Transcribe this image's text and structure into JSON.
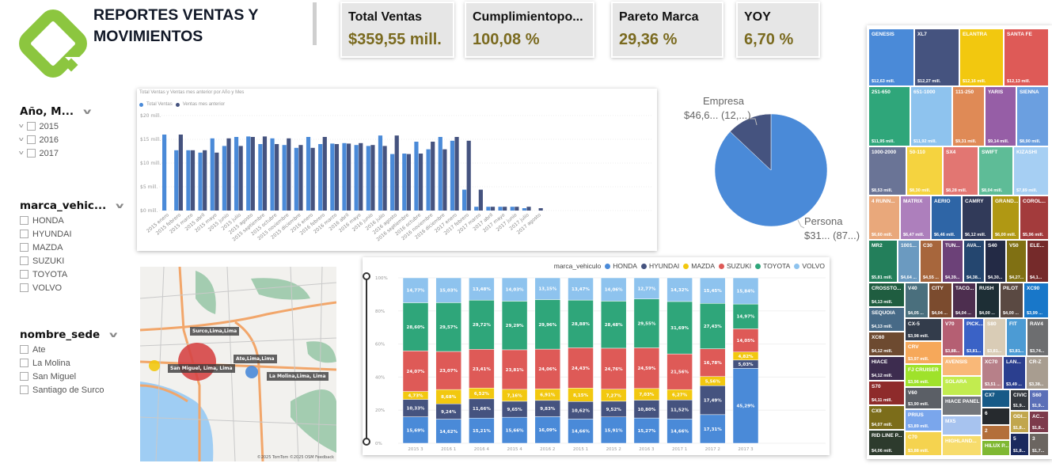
{
  "header": {
    "title": "REPORTES VENTAS Y MOVIMIENTOS"
  },
  "kpis": [
    {
      "label": "Total Ventas",
      "value": "$359,55 mill."
    },
    {
      "label": "Cumplimientopo...",
      "value": "100,08 %"
    },
    {
      "label": "Pareto Marca",
      "value": "29,36 %"
    },
    {
      "label": "YOY",
      "value": "6,70 %"
    }
  ],
  "slicers": {
    "year": {
      "title": "Año, M...",
      "items": [
        "2015",
        "2016",
        "2017"
      ]
    },
    "brand": {
      "title": "marca_vehic...",
      "items": [
        "HONDA",
        "HYUNDAI",
        "MAZDA",
        "SUZUKI",
        "TOYOTA",
        "VOLVO"
      ]
    },
    "site": {
      "title": "nombre_sede",
      "items": [
        "Ate",
        "La Molina",
        "San Miguel",
        "Santiago de Surco"
      ]
    }
  },
  "colors": {
    "light_blue": "#4a8ad8",
    "dark_blue": "#45537f",
    "kpi_value": "#7a6a1f",
    "logo_green": "#8cc63f"
  },
  "chart_data": [
    {
      "type": "bar",
      "title": "Total Ventas y Ventas mes anterior por Año y Mes",
      "legend_position": "top-left",
      "yticks": [
        "$0 mill.",
        "$5 mill.",
        "$10 mill.",
        "$15 mill.",
        "$20 mill."
      ],
      "ylim": [
        0,
        20
      ],
      "categories": [
        "2015 enero",
        "2015 febrero",
        "2015 marzo",
        "2015 abril",
        "2015 mayo",
        "2015 junio",
        "2015 julio",
        "2015 agosto",
        "2015 septiembre",
        "2015 octubre",
        "2015 noviembre",
        "2015 diciembre",
        "2016 enero",
        "2016 febrero",
        "2016 marzo",
        "2016 abril",
        "2016 mayo",
        "2016 junio",
        "2016 julio",
        "2016 agosto",
        "2016 septiembre",
        "2016 octubre",
        "2016 noviembre",
        "2016 diciembre",
        "2017 enero",
        "2017 febrero",
        "2017 marzo",
        "2017 abril",
        "2017 mayo",
        "2017 junio",
        "2017 julio",
        "2017 agosto"
      ],
      "series": [
        {
          "name": "Total Ventas",
          "color": "#4a8ad8",
          "values": [
            16.0,
            12.7,
            12.7,
            12.2,
            15.2,
            13.6,
            15.5,
            15.6,
            14.0,
            15.2,
            13.8,
            13.2,
            15.5,
            14.0,
            14.1,
            14.2,
            13.8,
            13.6,
            15.8,
            11.9,
            12.0,
            14.5,
            12.9,
            15.5,
            14.7,
            4.4,
            0.8,
            0.8,
            0.8,
            0.8,
            0.5,
            null
          ]
        },
        {
          "name": "Ventas mes anterior",
          "color": "#45537f",
          "values": [
            null,
            16.0,
            12.7,
            12.7,
            12.2,
            15.2,
            13.6,
            15.5,
            15.6,
            14.0,
            15.2,
            13.8,
            13.2,
            15.5,
            14.0,
            14.1,
            14.2,
            13.8,
            13.6,
            15.8,
            11.9,
            12.0,
            14.5,
            12.9,
            15.5,
            14.7,
            4.4,
            0.8,
            0.8,
            0.8,
            0.8,
            0.5
          ]
        }
      ]
    },
    {
      "type": "pie",
      "slices": [
        {
          "name": "Persona",
          "label": "$31... (87...)",
          "value": 312.95,
          "color": "#4a8ad8"
        },
        {
          "name": "Empresa",
          "label": "$46,6... (12,...)",
          "value": 46.6,
          "color": "#45537f"
        }
      ]
    },
    {
      "type": "bar",
      "stacked": "100%",
      "legend_title": "marca_vehiculo",
      "legend_position": "top-right",
      "yticks": [
        "0%",
        "20%",
        "40%",
        "60%",
        "80%",
        "100%"
      ],
      "categories": [
        "2015 3",
        "2016 1",
        "2016 4",
        "2015 4",
        "2016 2",
        "2015 1",
        "2015 2",
        "2016 3",
        "2017 1",
        "2017 2",
        "2017 3"
      ],
      "series": [
        {
          "name": "HONDA",
          "color": "#4a8ad8",
          "values": [
            15.69,
            14.62,
            15.21,
            15.66,
            16.09,
            14.66,
            15.91,
            15.27,
            14.66,
            17.31,
            45.29
          ]
        },
        {
          "name": "HYUNDAI",
          "color": "#45537f",
          "values": [
            10.33,
            9.24,
            11.66,
            9.65,
            9.83,
            10.62,
            9.52,
            10.8,
            11.52,
            17.49,
            5.03
          ]
        },
        {
          "name": "MAZDA",
          "color": "#f2c80f",
          "values": [
            4.73,
            8.68,
            6.52,
            7.16,
            6.91,
            8.15,
            7.27,
            7.03,
            6.27,
            5.56,
            4.82
          ]
        },
        {
          "name": "SUZUKI",
          "color": "#de5a57",
          "values": [
            24.07,
            23.07,
            23.41,
            23.81,
            24.06,
            24.43,
            24.76,
            24.59,
            21.56,
            16.78,
            14.05
          ]
        },
        {
          "name": "TOYOTA",
          "color": "#2fa67a",
          "values": [
            28.6,
            29.57,
            29.72,
            29.29,
            29.96,
            28.88,
            28.48,
            29.55,
            31.69,
            27.43,
            14.97
          ]
        },
        {
          "name": "VOLVO",
          "color": "#8ec3ee",
          "values": [
            14.77,
            15.03,
            13.48,
            14.03,
            13.15,
            13.47,
            14.06,
            12.77,
            14.32,
            15.45,
            15.84
          ]
        }
      ]
    },
    {
      "type": "treemap",
      "tiles": [
        {
          "name": "GENESIS",
          "value": "$12,63 mill.",
          "color": "#4a8ad8"
        },
        {
          "name": "XL7",
          "value": "$12,27 mill.",
          "color": "#45537f"
        },
        {
          "name": "ELANTRA",
          "value": "$12,16 mill.",
          "color": "#f2c80f"
        },
        {
          "name": "SANTA FE",
          "value": "$12,13 mill.",
          "color": "#de5a57"
        },
        {
          "name": "251-650",
          "value": "$11,95 mill.",
          "color": "#2fa67a"
        },
        {
          "name": "651-1000",
          "value": "$11,92 mill.",
          "color": "#8ec3ee"
        },
        {
          "name": "111-250",
          "value": "$9,31 mill.",
          "color": "#df8a56"
        },
        {
          "name": "YARIS",
          "value": "$9,14 mill.",
          "color": "#965ea6"
        },
        {
          "name": "SIENNA",
          "value": "$8,90 mill.",
          "color": "#6b9fe0"
        },
        {
          "name": "1000-2000",
          "value": "$8,53 mill.",
          "color": "#6a7496"
        },
        {
          "name": "50-110",
          "value": "$8,30 mill.",
          "color": "#f5d33f"
        },
        {
          "name": "SX4",
          "value": "$8,28 mill.",
          "color": "#e27672"
        },
        {
          "name": "SWIFT",
          "value": "$8,04 mill.",
          "color": "#5ebc97"
        },
        {
          "name": "KIZASHI",
          "value": "$7,89 mill.",
          "color": "#a6cff3"
        },
        {
          "name": "4 RUNN...",
          "value": "$6,60 mill.",
          "color": "#e9a87b"
        },
        {
          "name": "MATRIX",
          "value": "$6,47 mill.",
          "color": "#ad7fbc"
        },
        {
          "name": "AERIO",
          "value": "$6,46 mill.",
          "color": "#2e65a6"
        },
        {
          "name": "CAMRY",
          "value": "$6,12 mill.",
          "color": "#313a59"
        },
        {
          "name": "GRAND...",
          "value": "$6,00 mill.",
          "color": "#b09813"
        },
        {
          "name": "COROL...",
          "value": "$5,96 mill.",
          "color": "#a33b3c"
        },
        {
          "name": "MR2",
          "value": "$5,81 mill.",
          "color": "#237f5b"
        },
        {
          "name": "1001...",
          "value": "$4,64 ...",
          "color": "#6b9ac0"
        },
        {
          "name": "C30",
          "value": "$4,55 ...",
          "color": "#a7663c"
        },
        {
          "name": "TUN...",
          "value": "$4,39...",
          "color": "#6c4178"
        },
        {
          "name": "AVA...",
          "value": "$4,38...",
          "color": "#24466f"
        },
        {
          "name": "S40",
          "value": "$4,30...",
          "color": "#232a45"
        },
        {
          "name": "V50",
          "value": "$4,27...",
          "color": "#807013"
        },
        {
          "name": "ELE...",
          "value": "$4,1...",
          "color": "#752a2a"
        },
        {
          "name": "CROSSTO...",
          "value": "$4,13 mill.",
          "color": "#1f5d40"
        },
        {
          "name": "SEQUOIA",
          "value": "$4,13 mill.",
          "color": "#476a87"
        },
        {
          "name": "XC60",
          "value": "$4,12 mill.",
          "color": "#6d4a30"
        },
        {
          "name": "HIACE",
          "value": "$4,12 mill.",
          "color": "#3d2c4f"
        },
        {
          "name": "S70",
          "value": "$4,11 mill.",
          "color": "#8e2b2b"
        },
        {
          "name": "CX9",
          "value": "$4,07 mill.",
          "color": "#7c6d1a"
        },
        {
          "name": "RID LINE P...",
          "value": "$4,06 mill.",
          "color": "#2d3b2d"
        },
        {
          "name": "V40",
          "value": "$4,05 ...",
          "color": "#4a6f7d"
        },
        {
          "name": "CITY",
          "value": "$4,04 ...",
          "color": "#7b4b2e"
        },
        {
          "name": "TACO...",
          "value": "$4,04 ...",
          "color": "#4d2e4f"
        },
        {
          "name": "RUSH",
          "value": "$4,00 ...",
          "color": "#1d2e35"
        },
        {
          "name": "PILOT",
          "value": "$4,00 ...",
          "color": "#5a4942"
        },
        {
          "name": "XC90",
          "value": "$3,99 ...",
          "color": "#1877c9"
        },
        {
          "name": "CX-5",
          "value": "$3,98 mill.",
          "color": "#333c4b"
        },
        {
          "name": "CRV",
          "value": "$3,97 mill.",
          "color": "#f6a85a"
        },
        {
          "name": "FJ CRUISER",
          "value": "$3,96 mill.",
          "color": "#9fe22b"
        },
        {
          "name": "V60",
          "value": "$3,90 mill.",
          "color": "#5b5f66"
        },
        {
          "name": "PRIUS",
          "value": "$3,89 mill.",
          "color": "#7aa6ec"
        },
        {
          "name": "C70",
          "value": "$3,88 mill.",
          "color": "#f5d34f"
        },
        {
          "name": "V70",
          "value": "$3,88...",
          "color": "#b55f73"
        },
        {
          "name": "PICK...",
          "value": "$3,81...",
          "color": "#3a62c6"
        },
        {
          "name": "S80",
          "value": "$3,81...",
          "color": "#d9ccb6"
        },
        {
          "name": "FIT",
          "value": "$3,81...",
          "color": "#4c9bd4"
        },
        {
          "name": "RAV4",
          "value": "$3,74...",
          "color": "#6d6e70"
        },
        {
          "name": "AVENSIS",
          "value": "",
          "color": "#f9b878"
        },
        {
          "name": "SOLARA",
          "value": "",
          "color": "#c2ec4f"
        },
        {
          "name": "HIACE PANEL",
          "value": "",
          "color": "#74777c"
        },
        {
          "name": "MX5",
          "value": "",
          "color": "#a7c3ef"
        },
        {
          "name": "HIGHLAND...",
          "value": "",
          "color": "#f7dc6c"
        },
        {
          "name": "XC70",
          "value": "$3,51 ...",
          "color": "#b78089"
        },
        {
          "name": "LAN...",
          "value": "$3,49 ...",
          "color": "#2b3f8f"
        },
        {
          "name": "CR-Z",
          "value": "$3,38...",
          "color": "#a89d90"
        },
        {
          "name": "CX7",
          "value": "",
          "color": "#175a87"
        },
        {
          "name": "6",
          "value": "",
          "color": "#262a2e"
        },
        {
          "name": "2",
          "value": "",
          "color": "#b36f3a"
        },
        {
          "name": "HILUX P...",
          "value": "",
          "color": "#7fb832"
        },
        {
          "name": "CIVIC",
          "value": "$1,9...",
          "color": "#34393f"
        },
        {
          "name": "S60",
          "value": "$1,9...",
          "color": "#5b6fb7"
        },
        {
          "name": "ODI...",
          "value": "$1,8...",
          "color": "#c1a64d"
        },
        {
          "name": "AC...",
          "value": "$1,8...",
          "color": "#7d3a4b"
        },
        {
          "name": "5",
          "value": "$1,8...",
          "color": "#1b2a5e"
        },
        {
          "name": "3",
          "value": "$1,7...",
          "color": "#6b6560"
        }
      ]
    }
  ],
  "map": {
    "locations": [
      {
        "name": "Surco,Lima,Lima",
        "color": "#d64545"
      },
      {
        "name": "San Miguel, Lima, Lima",
        "color": "#f2c80f"
      },
      {
        "name": "Ate,Lima,Lima",
        "color": "#4a8ad8"
      },
      {
        "name": "La Molina,Lima, Lima",
        "color": "#4a8ad8"
      }
    ],
    "attribution": "©2025 TomTom ©2025 OSM Feedback"
  }
}
